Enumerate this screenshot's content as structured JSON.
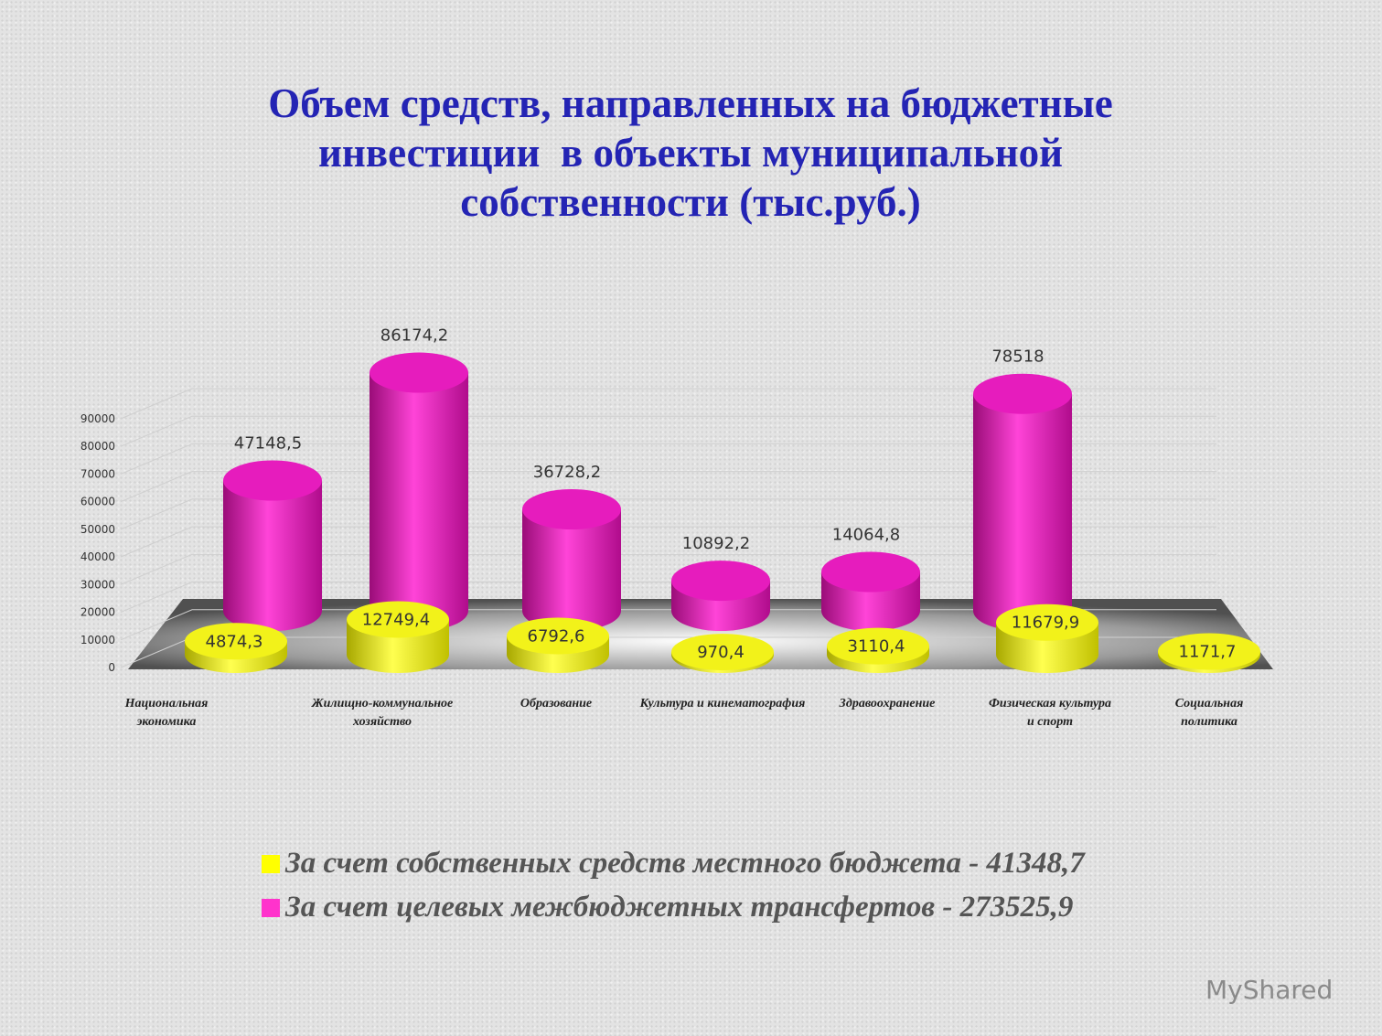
{
  "chart_data": {
    "type": "cylinder3d",
    "title": "Объем средств, направленных на бюджетные инвестиции  в объекты муниципальной собственности (тыс.руб.)",
    "categories": [
      "Национальная\nэкономика",
      "Жилищно-коммунальное\nхозяйство",
      "Образование",
      "Культура и кинематография",
      "Здравоохранение",
      "Физическая культура\nи спорт",
      "Социальная\nполитика"
    ],
    "series": [
      {
        "name": "За счет собственных средств местного бюджета - 41348,7",
        "color": "#ffff00",
        "values": [
          4874.3,
          12749.4,
          6792.6,
          970.4,
          3110.4,
          11679.9,
          1171.7
        ],
        "value_labels": [
          "4874,3",
          "12749,4",
          "6792,6",
          "970,4",
          "3110,4",
          "11679,9",
          "1171,7"
        ]
      },
      {
        "name": "За счет целевых межбюджетных трансфертов - 273525,9",
        "color": "#ff33cc",
        "values": [
          47148.5,
          86174.2,
          36728.2,
          10892.2,
          14064.8,
          78518,
          null
        ],
        "value_labels": [
          "47148,5",
          "86174,2",
          "36728,2",
          "10892,2",
          "14064,8",
          "78518",
          null
        ]
      }
    ],
    "ylim": [
      0,
      90000
    ],
    "yticks": [
      0,
      10000,
      20000,
      30000,
      40000,
      50000,
      60000,
      70000,
      80000,
      90000
    ],
    "grid": true
  },
  "watermark": "MyShared"
}
